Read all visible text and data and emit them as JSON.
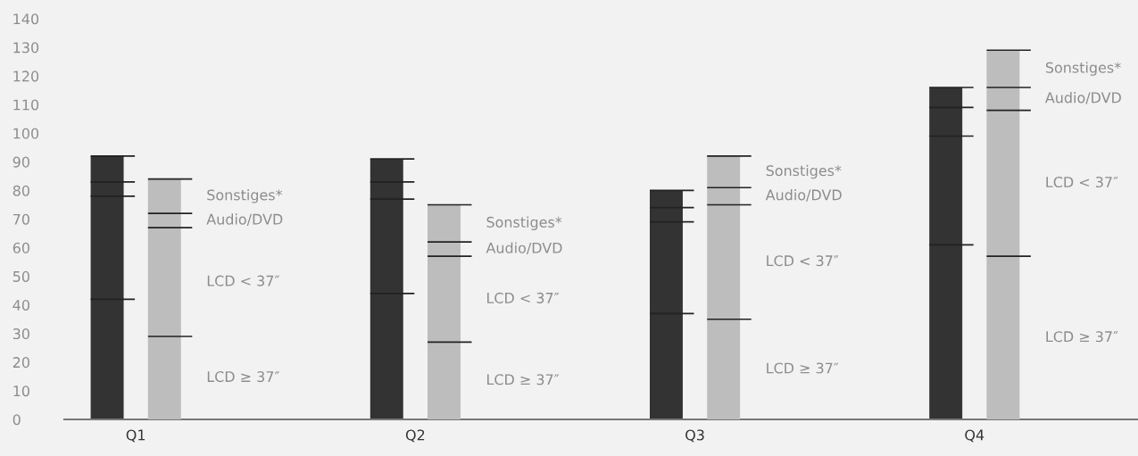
{
  "chart_data": [
    {
      "type": "bar",
      "stacked": true,
      "categories": [
        "Q1",
        "Q2",
        "Q3",
        "Q4"
      ],
      "series": [
        {
          "color": "#333333",
          "values": [
            42,
            44,
            37,
            61
          ]
        },
        {
          "color": "#333333",
          "values": [
            36,
            33,
            32,
            38
          ]
        },
        {
          "color": "#333333",
          "values": [
            5,
            6,
            5,
            10
          ]
        },
        {
          "color": "#333333",
          "values": [
            9,
            8,
            6,
            7
          ]
        }
      ],
      "ylim": [
        0,
        140
      ],
      "yticks": [
        0,
        10,
        20,
        30,
        40,
        50,
        60,
        70,
        80,
        90,
        100,
        110,
        120,
        130,
        140
      ],
      "grid": false,
      "legend": false
    },
    {
      "type": "bar",
      "stacked": true,
      "categories": [
        null,
        null,
        null,
        null
      ],
      "series": [
        {
          "name": "LCD ≥ 37″",
          "color": "#bdbdbd",
          "values": [
            29,
            27,
            35,
            57
          ]
        },
        {
          "name": "LCD < 37″",
          "color": "#bdbdbd",
          "values": [
            38,
            30,
            40,
            51
          ]
        },
        {
          "name": "Audio/DVD",
          "color": "#bdbdbd",
          "values": [
            5,
            5,
            6,
            8
          ]
        },
        {
          "name": "Sonstiges*",
          "color": "#bdbdbd",
          "values": [
            12,
            13,
            11,
            13
          ]
        }
      ],
      "ylim": [
        0,
        140
      ],
      "tick_labels": false,
      "grid": false,
      "legend": false
    }
  ]
}
